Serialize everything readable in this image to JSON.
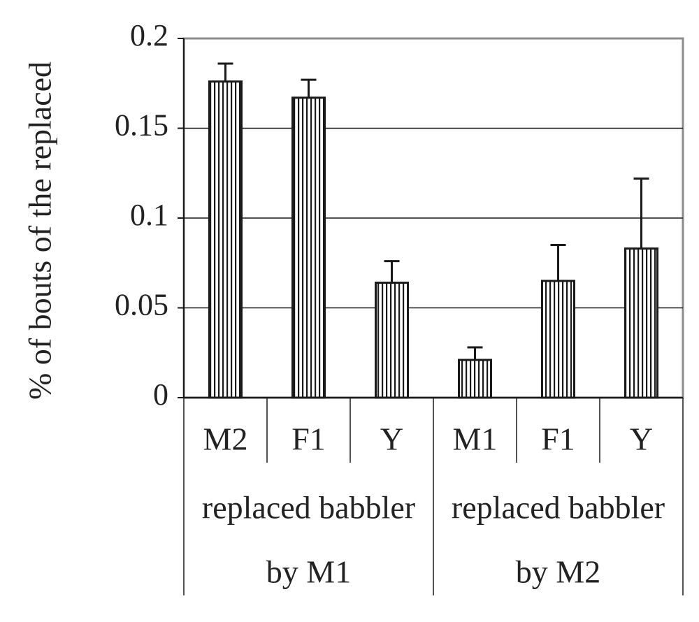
{
  "chart_data": {
    "type": "bar",
    "ylabel": "% of bouts of the replaced",
    "ylim": [
      0,
      0.2
    ],
    "yticks": [
      {
        "value": 0,
        "label": "0"
      },
      {
        "value": 0.05,
        "label": "0.05"
      },
      {
        "value": 0.1,
        "label": "0.1"
      },
      {
        "value": 0.15,
        "label": "0.15"
      },
      {
        "value": 0.2,
        "label": "0.2"
      }
    ],
    "grid": true,
    "bar_pattern": "vertical-hatch",
    "categories": [
      "M2",
      "F1",
      "Y",
      "M1",
      "F1",
      "Y"
    ],
    "groups": [
      {
        "line1": "replaced babbler",
        "line2": "by M1",
        "categories": [
          "M2",
          "F1",
          "Y"
        ]
      },
      {
        "line1": "replaced babbler",
        "line2": "by M2",
        "categories": [
          "M1",
          "F1",
          "Y"
        ]
      }
    ],
    "values": [
      0.176,
      0.167,
      0.064,
      0.021,
      0.065,
      0.083
    ],
    "errors": [
      0.01,
      0.01,
      0.012,
      0.007,
      0.02,
      0.039
    ]
  }
}
